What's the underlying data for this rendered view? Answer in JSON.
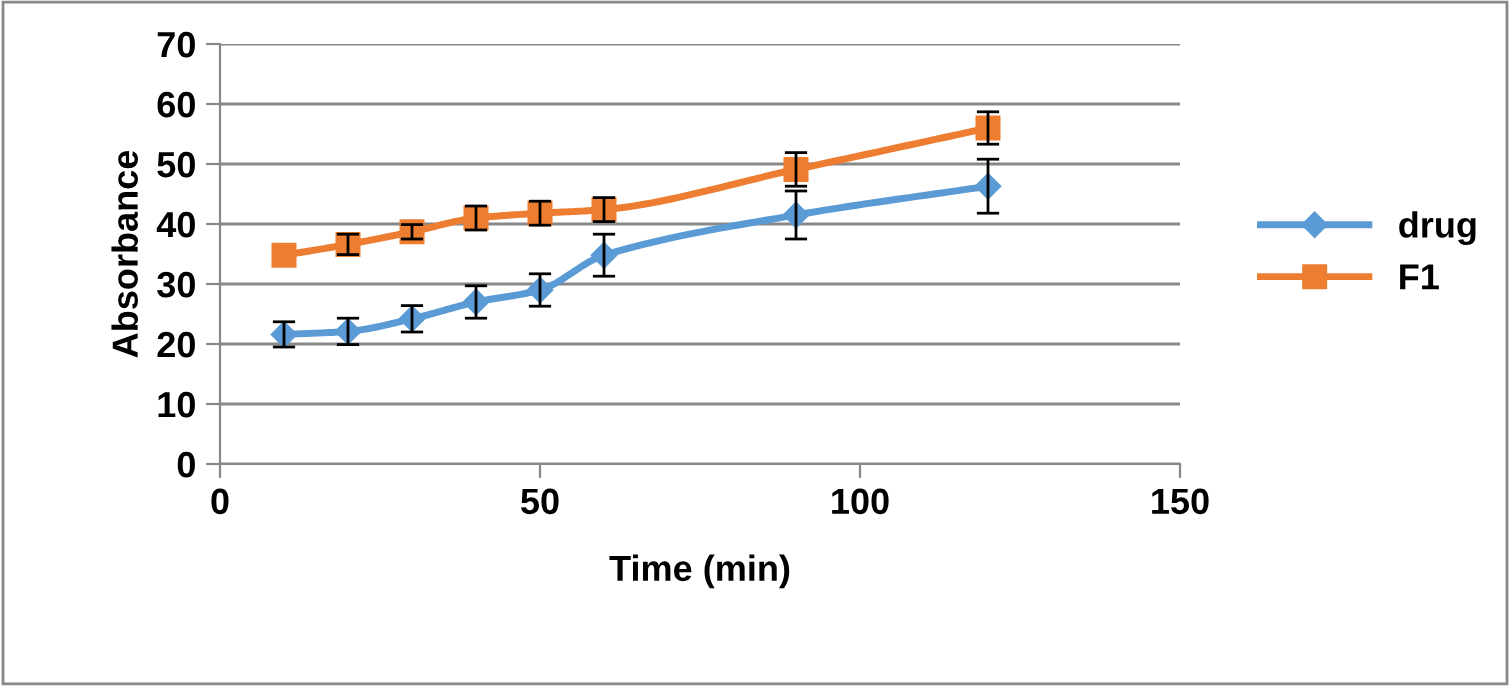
{
  "chart_data": {
    "type": "line",
    "xlabel": "Time (min)",
    "ylabel": "Absorbance",
    "x": [
      10,
      20,
      30,
      40,
      50,
      60,
      90,
      120
    ],
    "series": [
      {
        "name": "drug",
        "color": "#5b9bd5",
        "marker": "diamond",
        "values": [
          21.6,
          22.1,
          24.2,
          27.0,
          29.0,
          34.8,
          41.5,
          46.3
        ],
        "errors": [
          2.1,
          2.2,
          2.2,
          2.7,
          2.7,
          3.5,
          4,
          4.5
        ]
      },
      {
        "name": "F1",
        "color": "#ed7d31",
        "marker": "square",
        "values": [
          34.8,
          36.6,
          38.7,
          41.0,
          41.8,
          42.4,
          49.1,
          56.0
        ],
        "errors": [
          null,
          1.7,
          1.2,
          2,
          2,
          2,
          2.8,
          2.7
        ]
      }
    ],
    "xlim": [
      0,
      150
    ],
    "xticks": [
      0,
      50,
      100,
      150
    ],
    "ylim": [
      0,
      70
    ],
    "yticks": [
      0,
      10,
      20,
      30,
      40,
      50,
      60,
      70
    ],
    "grid": "y",
    "legend": "right"
  }
}
